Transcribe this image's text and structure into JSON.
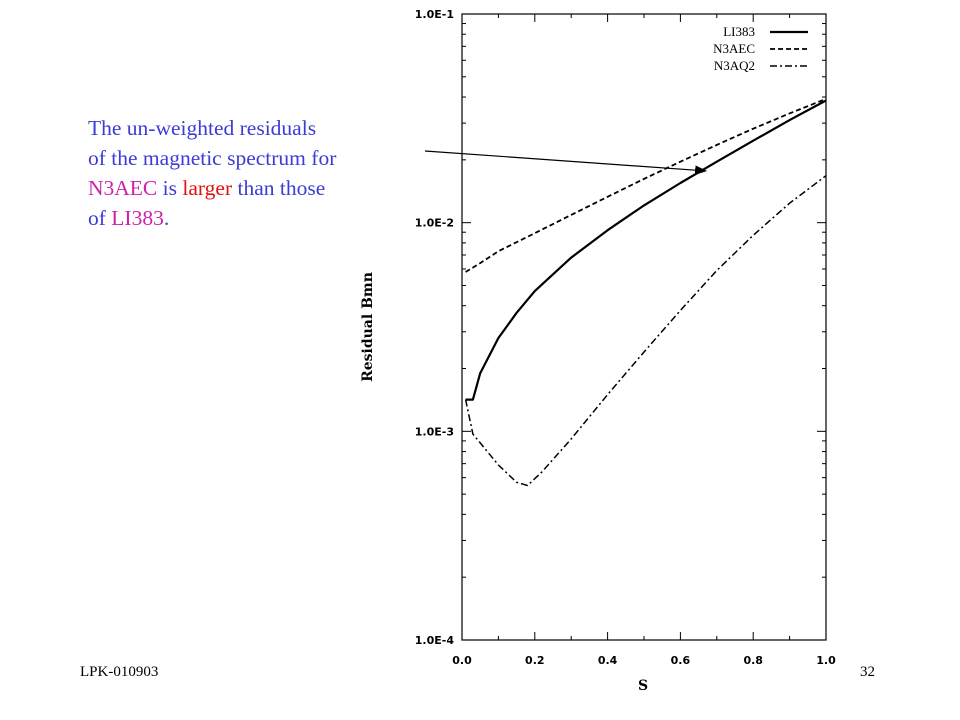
{
  "annotation": {
    "line1": "The un-weighted residuals",
    "line2": "of the magnetic spectrum for",
    "line3_series": "N3AEC",
    "line3_mid": " is ",
    "line3_emph": "larger",
    "line3_end": " than those",
    "line4_pre": "of ",
    "line4_series": "LI383",
    "line4_end": "."
  },
  "footer": {
    "left": "LPK-010903",
    "page": "32"
  },
  "chart_data": {
    "type": "line",
    "xlabel": "S",
    "ylabel": "Residual Bmn",
    "xlim": [
      0,
      1
    ],
    "ylim": [
      0.0001,
      0.1
    ],
    "yscale": "log",
    "x_ticks": [
      "0.0",
      "0.2",
      "0.4",
      "0.6",
      "0.8",
      "1.0"
    ],
    "y_ticks": [
      "1.0E-4",
      "1.0E-3",
      "1.0E-2",
      "1.0E-1"
    ],
    "grid": false,
    "legend_position": "top-right",
    "series": [
      {
        "name": "LI383",
        "style": "solid",
        "x": [
          0.01,
          0.03,
          0.05,
          0.1,
          0.15,
          0.2,
          0.3,
          0.4,
          0.5,
          0.6,
          0.7,
          0.8,
          0.9,
          1.0
        ],
        "y": [
          0.00142,
          0.00142,
          0.0019,
          0.0028,
          0.0037,
          0.0047,
          0.0068,
          0.0092,
          0.0121,
          0.0155,
          0.0196,
          0.0247,
          0.031,
          0.0385
        ]
      },
      {
        "name": "N3AEC",
        "style": "dashed",
        "x": [
          0.01,
          0.05,
          0.1,
          0.2,
          0.3,
          0.4,
          0.5,
          0.6,
          0.7,
          0.8,
          0.9,
          1.0
        ],
        "y": [
          0.0058,
          0.0064,
          0.0073,
          0.0089,
          0.0109,
          0.0133,
          0.0162,
          0.0196,
          0.0236,
          0.0282,
          0.0334,
          0.0392
        ]
      },
      {
        "name": "N3AQ2",
        "style": "dash-dot",
        "x": [
          0.01,
          0.03,
          0.05,
          0.1,
          0.15,
          0.18,
          0.22,
          0.3,
          0.4,
          0.5,
          0.6,
          0.7,
          0.8,
          0.9,
          1.0
        ],
        "y": [
          0.00142,
          0.00097,
          0.00088,
          0.00069,
          0.00057,
          0.00055,
          0.00064,
          0.00092,
          0.0015,
          0.0024,
          0.0038,
          0.0059,
          0.0087,
          0.0124,
          0.0168
        ]
      }
    ],
    "annotation_arrow": {
      "target_x": 0.67,
      "target_y": 0.0177
    }
  }
}
